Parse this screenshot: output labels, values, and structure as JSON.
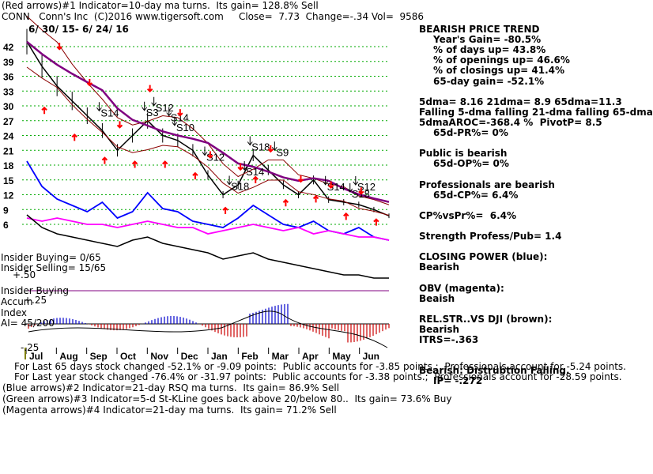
{
  "header": {
    "line1": "(Red arrows)#1 Indicator=10-day ma turns.  Its gain= 128.8% Sell",
    "line2": "CONN   Conn's Inc  (C)2016 www.tigersoft.com     Close=  7.73  Change=-.34 Vol=  9586",
    "date_range": "6/ 30/ 15- 6/ 24/ 16"
  },
  "right_panel": [
    {
      "text": "BEARISH PRICE TREND",
      "indent": 0,
      "bold": true
    },
    {
      "text": "Year's Gain= -80.5%",
      "indent": 18,
      "bold": true
    },
    {
      "text": "% of days up= 43.8%",
      "indent": 18,
      "bold": true
    },
    {
      "text": "% of openings up= 46.6%",
      "indent": 18,
      "bold": true
    },
    {
      "text": "% of closings up= 41.4%",
      "indent": 18,
      "bold": true
    },
    {
      "text": "65-day gain= -52.1%",
      "indent": 18,
      "bold": true
    },
    {
      "text": "",
      "indent": 0,
      "bold": false
    },
    {
      "text": "5dma= 8.16 21dma= 8.9 65dma=11.3",
      "indent": 0,
      "bold": true
    },
    {
      "text": "Falling 5-dma falling 21-dma falling 65-dma",
      "indent": 0,
      "bold": true
    },
    {
      "text": "5dmaAROC=-368.4 %  PivotP= 8.5",
      "indent": 0,
      "bold": true
    },
    {
      "text": "65d-PR%= 0%",
      "indent": 18,
      "bold": true
    },
    {
      "text": "",
      "indent": 0,
      "bold": false
    },
    {
      "text": "Public is bearish",
      "indent": 0,
      "bold": true
    },
    {
      "text": "65d-OP%= 0%",
      "indent": 18,
      "bold": true
    },
    {
      "text": "",
      "indent": 0,
      "bold": false
    },
    {
      "text": "Professionals are bearish",
      "indent": 0,
      "bold": true
    },
    {
      "text": "65d-CP%= 6.4%",
      "indent": 18,
      "bold": true
    },
    {
      "text": "",
      "indent": 0,
      "bold": false
    },
    {
      "text": "CP%vsPr%=  6.4%",
      "indent": 0,
      "bold": true
    },
    {
      "text": "",
      "indent": 0,
      "bold": false
    },
    {
      "text": "Strength Profess/Pub= 1.4",
      "indent": 0,
      "bold": true
    },
    {
      "text": "",
      "indent": 0,
      "bold": false
    },
    {
      "text": "CLOSING POWER (blue):",
      "indent": 0,
      "bold": true
    },
    {
      "text": "Bearish",
      "indent": 0,
      "bold": true
    },
    {
      "text": "",
      "indent": 0,
      "bold": false
    },
    {
      "text": "OBV (magenta):",
      "indent": 0,
      "bold": true
    },
    {
      "text": "Beaish",
      "indent": 0,
      "bold": true
    },
    {
      "text": "",
      "indent": 0,
      "bold": false
    },
    {
      "text": "REL.STR..VS DJI (brown):",
      "indent": 0,
      "bold": true
    },
    {
      "text": "Bearish",
      "indent": 0,
      "bold": true
    },
    {
      "text": "ITRS=-.363",
      "indent": 0,
      "bold": true
    },
    {
      "text": "",
      "indent": 0,
      "bold": false
    },
    {
      "text": "",
      "indent": 0,
      "bold": false
    },
    {
      "text": "Bearish: Distrubtion Falling.",
      "indent": 0,
      "bold": true
    },
    {
      "text": "IP= -.272",
      "indent": 18,
      "bold": true
    }
  ],
  "insider": {
    "buying": "Insider Buying= 0/65",
    "selling": "Insider Selling= 15/65",
    "plus50": "+.50",
    "buying2": "Insider Buying",
    "accum": "Accum",
    "plus25": "+.25",
    "index": "Index",
    "ai": "AI= 45/200",
    "minus25": "-.25"
  },
  "bottom_text": [
    "For Last 65 days stock changed -52.1% or -9.09 points:  Public accounts for -3.85 points.;  Professionals account for -5.24 points.",
    "For Last year stock changed -76.4% or -31.97 points:  Public accounts for -3.38 points.;  Professionals account for -28.59 points.",
    "(Blue arrows)#2 Indicator=21-day RSQ ma turns.  Its gain= 86.9% Sell",
    "(Green arrows)#3 Indicator=5-d St-KLine goes back above 20/below 80..  Its gain= 73.6% Buy",
    "(Magenta arrows)#4 Indicator=21-day ma turns.  Its gain= 71.2% Sell"
  ],
  "chart_data": {
    "type": "line",
    "title": "CONN   Conn's Inc  (C)2016 www.tigersoft.com",
    "y_ticks": [
      "42",
      "39",
      "36",
      "33",
      "30",
      "27",
      "24",
      "21",
      "18",
      "15",
      "12",
      "9",
      "6"
    ],
    "ylim": [
      6,
      42
    ],
    "x_ticks": [
      "Jul",
      "Aug",
      "Sep",
      "Oct",
      "Nov",
      "Dec",
      "Jan",
      "Feb",
      "Mar",
      "Apr",
      "May",
      "Jun"
    ],
    "grid": true,
    "colors": {
      "price": "#000000",
      "ma_short": "#8b0000",
      "ma_long": "#800080",
      "closing_power": "#0000ff",
      "obv": "#ff00ff",
      "rel_str": "#000000",
      "accum_neg": "#cc0000",
      "accum_pos": "#0000cc",
      "grid": "#00aa00"
    },
    "price_series": {
      "name": "CONN",
      "x": [
        "2015-07-01",
        "2015-07-15",
        "2015-08-01",
        "2015-08-15",
        "2015-09-01",
        "2015-09-15",
        "2015-10-01",
        "2015-10-15",
        "2015-11-01",
        "2015-11-15",
        "2015-12-01",
        "2015-12-15",
        "2016-01-01",
        "2016-01-15",
        "2016-02-01",
        "2016-02-15",
        "2016-03-01",
        "2016-03-15",
        "2016-04-01",
        "2016-04-15",
        "2016-05-01",
        "2016-05-15",
        "2016-06-01",
        "2016-06-15",
        "2016-06-24"
      ],
      "values": [
        43,
        38,
        34,
        31,
        28,
        25,
        21,
        24,
        27,
        24,
        23,
        21,
        16,
        12,
        14,
        20,
        17,
        14,
        12,
        15,
        11,
        10.5,
        10,
        9,
        7.73
      ]
    },
    "signals": [
      {
        "label": "S14"
      },
      {
        "label": "S12"
      },
      {
        "label": "S3"
      },
      {
        "label": "S14"
      },
      {
        "label": "S10"
      },
      {
        "label": "S18"
      },
      {
        "label": "S12"
      },
      {
        "label": "S14"
      },
      {
        "label": "S18"
      },
      {
        "label": "S9"
      },
      {
        "label": "S14"
      },
      {
        "label": "S18"
      },
      {
        "label": "S12"
      }
    ]
  }
}
